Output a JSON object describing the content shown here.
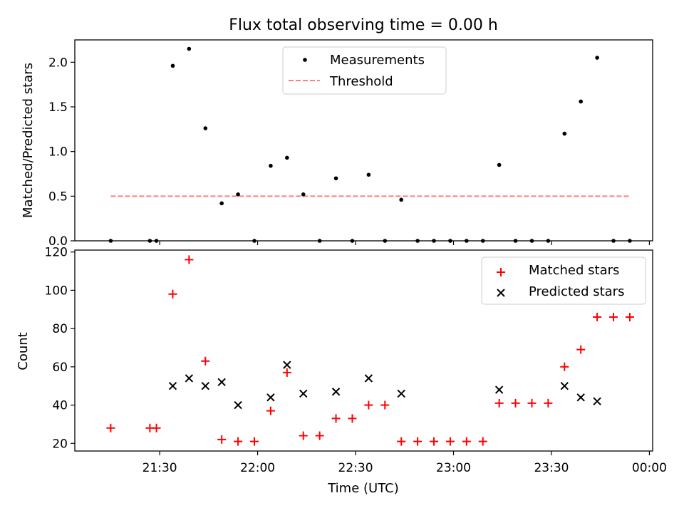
{
  "title": "Flux total observing time = 0.00 h",
  "colors": {
    "measurements": "#000000",
    "threshold": "#ff7f7f",
    "matched": "#ff0000",
    "predicted": "#000000"
  },
  "chart_data": [
    {
      "type": "scatter",
      "title": "Flux total observing time = 0.00 h",
      "xlabel": "",
      "ylabel": "Matched/Predicted stars",
      "ylim": [
        0,
        2.25
      ],
      "yticks": [
        "0.0",
        "0.5",
        "1.0",
        "1.5",
        "2.0"
      ],
      "xlim": [
        "21:04",
        "00:01"
      ],
      "grid": false,
      "legend": {
        "position": "top-center",
        "entries": [
          "Measurements",
          "Threshold"
        ]
      },
      "series": [
        {
          "name": "Measurements",
          "marker": "dot",
          "x": [
            "21:15",
            "21:27",
            "21:29",
            "21:34",
            "21:39",
            "21:44",
            "21:49",
            "21:54",
            "21:59",
            "22:04",
            "22:09",
            "22:14",
            "22:19",
            "22:24",
            "22:29",
            "22:34",
            "22:39",
            "22:44",
            "22:49",
            "22:54",
            "22:59",
            "23:04",
            "23:09",
            "23:14",
            "23:19",
            "23:24",
            "23:29",
            "23:34",
            "23:39",
            "23:44",
            "23:49",
            "23:54"
          ],
          "y": [
            0,
            0,
            0,
            1.96,
            2.15,
            1.26,
            0.42,
            0.52,
            0,
            0.84,
            0.93,
            0.52,
            0,
            0.7,
            0,
            0.74,
            0,
            0.46,
            0,
            0,
            0,
            0,
            0,
            0.85,
            0,
            0,
            0,
            1.2,
            1.56,
            2.05,
            0,
            0
          ]
        },
        {
          "name": "Threshold",
          "style": "dashed",
          "x": [
            "21:15",
            "23:54"
          ],
          "y": [
            0.5,
            0.5
          ]
        }
      ]
    },
    {
      "type": "scatter",
      "xlabel": "Time (UTC)",
      "ylabel": "Count",
      "ylim": [
        16,
        121
      ],
      "yticks": [
        "20",
        "40",
        "60",
        "80",
        "100",
        "120"
      ],
      "xlim": [
        "21:04",
        "00:01"
      ],
      "xticks": [
        "21:30",
        "22:00",
        "22:30",
        "23:00",
        "23:30",
        "00:00"
      ],
      "grid": false,
      "legend": {
        "position": "top-right",
        "entries": [
          "Matched stars",
          "Predicted stars"
        ]
      },
      "series": [
        {
          "name": "Matched stars",
          "marker": "plus",
          "x": [
            "21:15",
            "21:27",
            "21:29",
            "21:34",
            "21:39",
            "21:44",
            "21:49",
            "21:54",
            "21:59",
            "22:04",
            "22:09",
            "22:14",
            "22:19",
            "22:24",
            "22:29",
            "22:34",
            "22:39",
            "22:44",
            "22:49",
            "22:54",
            "22:59",
            "23:04",
            "23:09",
            "23:14",
            "23:19",
            "23:24",
            "23:29",
            "23:34",
            "23:39",
            "23:44",
            "23:49",
            "23:54"
          ],
          "y": [
            28,
            28,
            28,
            98,
            116,
            63,
            22,
            21,
            21,
            37,
            57,
            24,
            24,
            33,
            33,
            40,
            40,
            21,
            21,
            21,
            21,
            21,
            21,
            41,
            41,
            41,
            41,
            60,
            69,
            86,
            86,
            86
          ]
        },
        {
          "name": "Predicted stars",
          "marker": "x",
          "x": [
            "21:34",
            "21:39",
            "21:44",
            "21:49",
            "21:54",
            "22:04",
            "22:09",
            "22:14",
            "22:24",
            "22:34",
            "22:44",
            "23:14",
            "23:34",
            "23:39",
            "23:44"
          ],
          "y": [
            50,
            54,
            50,
            52,
            40,
            44,
            61,
            46,
            47,
            54,
            46,
            48,
            50,
            44,
            42
          ]
        }
      ]
    }
  ]
}
